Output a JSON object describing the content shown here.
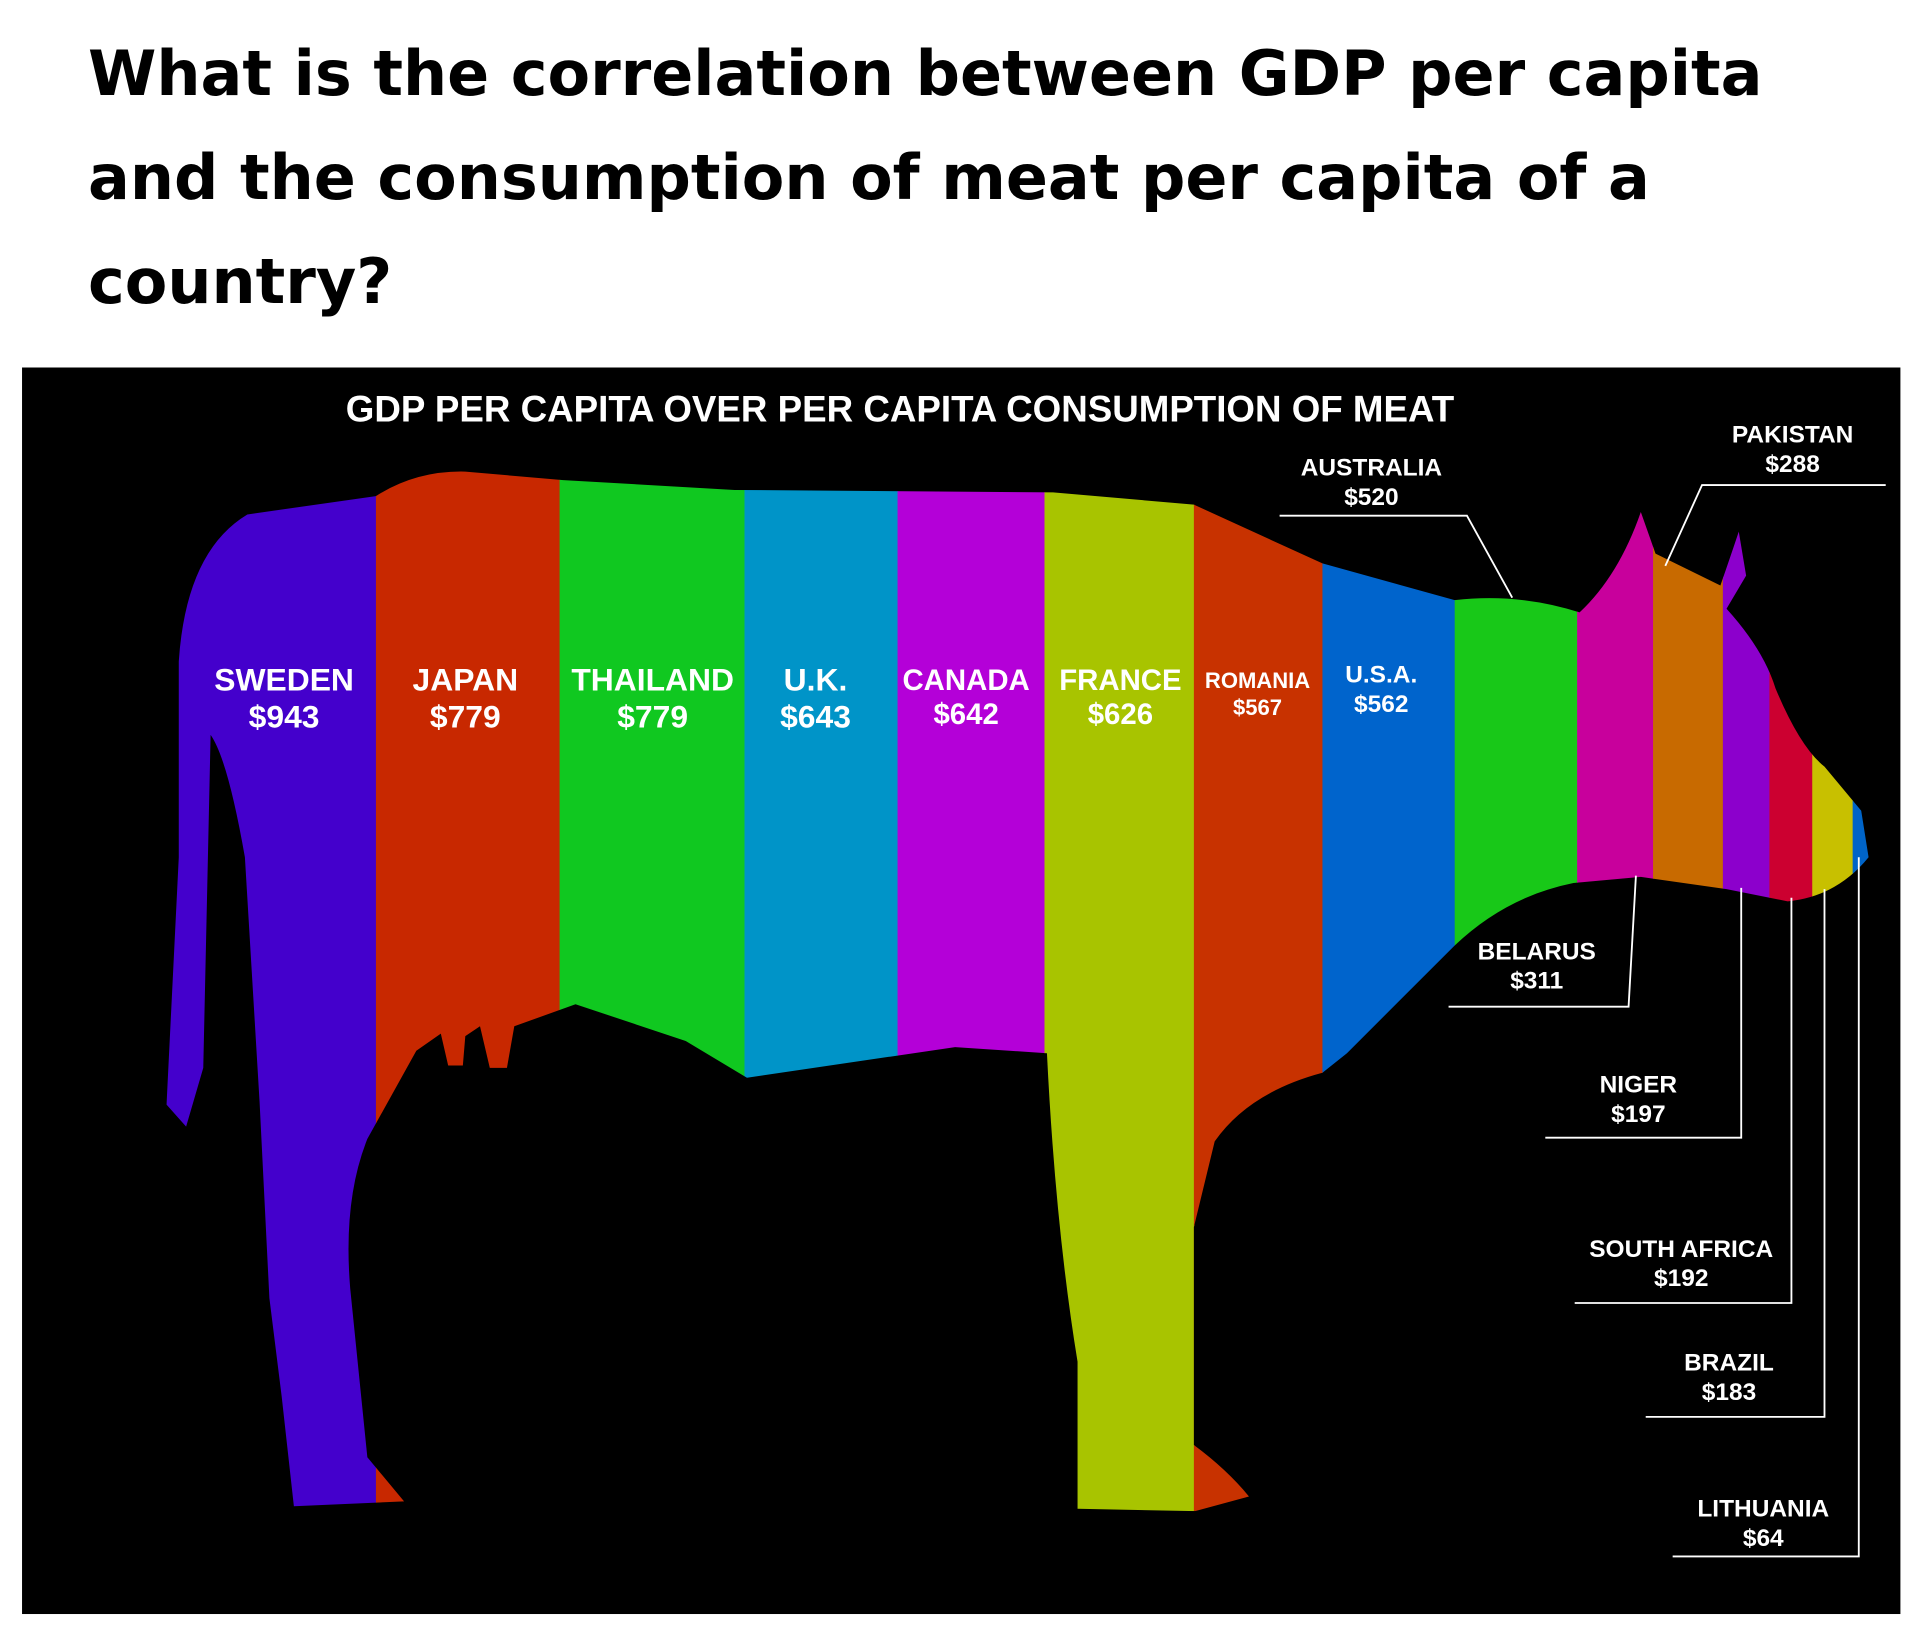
{
  "question": "What is the correlation between GDP per capita and the consumption of meat per capita of a country?",
  "infographic": {
    "title": "GDP PER CAPITA OVER PER CAPITA CONSUMPTION OF MEAT",
    "countries": [
      {
        "name": "SWEDEN",
        "label": "$943",
        "color": "#4400cc"
      },
      {
        "name": "JAPAN",
        "label": "$779",
        "color": "#c82800"
      },
      {
        "name": "THAILAND",
        "label": "$779",
        "color": "#10c820"
      },
      {
        "name": "U.K.",
        "label": "$643",
        "color": "#0094c8"
      },
      {
        "name": "CANADA",
        "label": "$642",
        "color": "#b400d8"
      },
      {
        "name": "FRANCE",
        "label": "$626",
        "color": "#a8c400"
      },
      {
        "name": "ROMANIA",
        "label": "$567",
        "color": "#c83200"
      },
      {
        "name": "U.S.A.",
        "label": "$562",
        "color": "#0064cc"
      },
      {
        "name": "AUSTRALIA",
        "label": "$520",
        "color": "#18c818"
      },
      {
        "name": "BELARUS",
        "label": "$311",
        "color": "#c8009c"
      },
      {
        "name": "PAKISTAN",
        "label": "$288",
        "color": "#c86a00"
      },
      {
        "name": "NIGER",
        "label": "$197",
        "color": "#8c00cc"
      },
      {
        "name": "SOUTH AFRICA",
        "label": "$192",
        "color": "#cc0030"
      },
      {
        "name": "BRAZIL",
        "label": "$183",
        "color": "#c8c000"
      },
      {
        "name": "LITHUANIA",
        "label": "$64",
        "color": "#0064c8"
      }
    ]
  }
}
